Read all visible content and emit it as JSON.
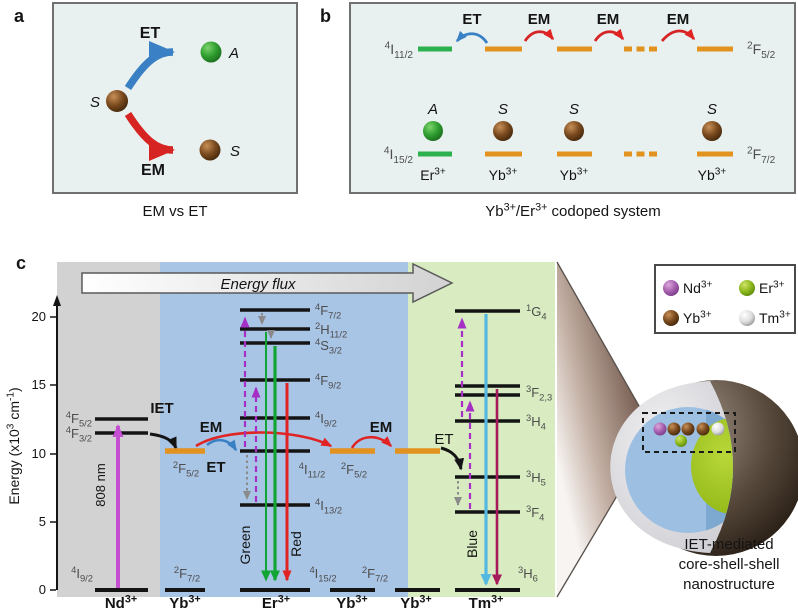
{
  "panel_a": {
    "label": "a",
    "caption": "EM vs ET",
    "et_label": "ET",
    "em_label": "EM",
    "sensitizer_label": "S",
    "acceptor_label": "A",
    "sensitizer2_label": "S"
  },
  "panel_b": {
    "label": "b",
    "caption": [
      {
        "t": "Yb"
      },
      {
        "t": "3+",
        "sup": true
      },
      {
        "t": "/Er"
      },
      {
        "t": "3+",
        "sup": true
      },
      {
        "t": " codoped system"
      }
    ],
    "et_label": "ET",
    "em_label_1": "EM",
    "em_label_2": "EM",
    "em_label_3": "EM",
    "term_top_left": [
      {
        "t": "4",
        "sup": true
      },
      {
        "t": "I"
      },
      {
        "t": "11/2",
        "sub": true
      }
    ],
    "term_top_right": [
      {
        "t": "2",
        "sup": true
      },
      {
        "t": "F"
      },
      {
        "t": "5/2",
        "sub": true
      }
    ],
    "term_bottom_left": [
      {
        "t": "4",
        "sup": true
      },
      {
        "t": "I"
      },
      {
        "t": "15/2",
        "sub": true
      }
    ],
    "term_bottom_right": [
      {
        "t": "2",
        "sup": true
      },
      {
        "t": "F"
      },
      {
        "t": "7/2",
        "sub": true
      }
    ],
    "site_labels": [
      "A",
      "S",
      "S",
      "S"
    ],
    "ion_labels": [
      [
        {
          "t": "Er"
        },
        {
          "t": "3+",
          "sup": true
        }
      ],
      [
        {
          "t": "Yb"
        },
        {
          "t": "3+",
          "sup": true
        }
      ],
      [
        {
          "t": "Yb"
        },
        {
          "t": "3+",
          "sup": true
        }
      ],
      [
        {
          "t": "Yb"
        },
        {
          "t": "3+",
          "sup": true
        }
      ]
    ]
  },
  "panel_c": {
    "label": "c",
    "flux_label": "Energy flux",
    "axis_label": [
      {
        "t": "Energy (x10"
      },
      {
        "t": "3",
        "sup": true
      },
      {
        "t": " cm"
      },
      {
        "t": "-1",
        "sup": true
      },
      {
        "t": ")"
      }
    ],
    "ticks": [
      "0",
      "5",
      "10",
      "15",
      "20"
    ],
    "pump_label": "808 nm",
    "iet_label": "IET",
    "em_label_1": "EM",
    "em_label_2": "EM",
    "et_label_blue": "ET",
    "et_label_black": "ET",
    "green_label": "Green",
    "red_label": "Red",
    "blue_label": "Blue",
    "terms": {
      "nd_f52": [
        {
          "t": "4",
          "sup": true
        },
        {
          "t": "F"
        },
        {
          "t": "5/2",
          "sub": true
        }
      ],
      "nd_f32": [
        {
          "t": "4",
          "sup": true
        },
        {
          "t": "F"
        },
        {
          "t": "3/2",
          "sub": true
        }
      ],
      "nd_i92": [
        {
          "t": "4",
          "sup": true
        },
        {
          "t": "I"
        },
        {
          "t": "9/2",
          "sub": true
        }
      ],
      "yb_f52": [
        {
          "t": "2",
          "sup": true
        },
        {
          "t": "F"
        },
        {
          "t": "5/2",
          "sub": true
        }
      ],
      "yb_f72": [
        {
          "t": "2",
          "sup": true
        },
        {
          "t": "F"
        },
        {
          "t": "7/2",
          "sub": true
        }
      ],
      "er_f72": [
        {
          "t": "4",
          "sup": true
        },
        {
          "t": "F"
        },
        {
          "t": "7/2",
          "sub": true
        }
      ],
      "er_h112": [
        {
          "t": "2",
          "sup": true
        },
        {
          "t": "H"
        },
        {
          "t": "11/2",
          "sub": true
        }
      ],
      "er_s32": [
        {
          "t": "4",
          "sup": true
        },
        {
          "t": "S"
        },
        {
          "t": "3/2",
          "sub": true
        }
      ],
      "er_f92": [
        {
          "t": "4",
          "sup": true
        },
        {
          "t": "F"
        },
        {
          "t": "9/2",
          "sub": true
        }
      ],
      "er_i92": [
        {
          "t": "4",
          "sup": true
        },
        {
          "t": "I"
        },
        {
          "t": "9/2",
          "sub": true
        }
      ],
      "er_i112": [
        {
          "t": "4",
          "sup": true
        },
        {
          "t": "I"
        },
        {
          "t": "11/2",
          "sub": true
        }
      ],
      "er_i132": [
        {
          "t": "4",
          "sup": true
        },
        {
          "t": "I"
        },
        {
          "t": "13/2",
          "sub": true
        }
      ],
      "er_i152": [
        {
          "t": "4",
          "sup": true
        },
        {
          "t": "I"
        },
        {
          "t": "15/2",
          "sub": true
        }
      ],
      "yb2_f52": [
        {
          "t": "2",
          "sup": true
        },
        {
          "t": "F"
        },
        {
          "t": "5/2",
          "sub": true
        }
      ],
      "yb2_f72": [
        {
          "t": "2",
          "sup": true
        },
        {
          "t": "F"
        },
        {
          "t": "7/2",
          "sub": true
        }
      ],
      "tm_1g4": [
        {
          "t": "1",
          "sup": true
        },
        {
          "t": "G"
        },
        {
          "t": "4",
          "sub": true
        }
      ],
      "tm_3f23": [
        {
          "t": "3",
          "sup": true
        },
        {
          "t": "F"
        },
        {
          "t": "2,3",
          "sub": true
        }
      ],
      "tm_3h4": [
        {
          "t": "3",
          "sup": true
        },
        {
          "t": "H"
        },
        {
          "t": "4",
          "sub": true
        }
      ],
      "tm_3h5": [
        {
          "t": "3",
          "sup": true
        },
        {
          "t": "H"
        },
        {
          "t": "5",
          "sub": true
        }
      ],
      "tm_3f4": [
        {
          "t": "3",
          "sup": true
        },
        {
          "t": "F"
        },
        {
          "t": "4",
          "sub": true
        }
      ],
      "tm_3h6": [
        {
          "t": "3",
          "sup": true
        },
        {
          "t": "H"
        },
        {
          "t": "6",
          "sub": true
        }
      ]
    },
    "level_energies_e3cm": {
      "nd": {
        "4F5/2": 12.5,
        "4F3/2": 11.5,
        "4I9/2": 0
      },
      "yb": {
        "2F5/2": 10.2,
        "2F7/2": 0
      },
      "er": {
        "4F7/2": 20.5,
        "2H11/2": 19.1,
        "4S3/2": 18.1,
        "4F9/2": 15.4,
        "4I9/2": 12.6,
        "4I11/2": 10.2,
        "4I13/2": 6.2,
        "4I15/2": 0
      },
      "tm": {
        "1G4": 20.4,
        "3F2,3": 14.7,
        "3H4": 12.4,
        "3H5": 8.3,
        "3F4": 5.7,
        "3H6": 0
      }
    },
    "ions": [
      {
        "label": [
          {
            "t": "Nd"
          },
          {
            "t": "3+",
            "sup": true
          }
        ],
        "color": "#141414"
      },
      {
        "label": [
          {
            "t": "Yb"
          },
          {
            "t": "3+",
            "sup": true
          }
        ],
        "color": "#c23b3b"
      },
      {
        "label": [
          {
            "t": "Er"
          },
          {
            "t": "3+",
            "sup": true
          }
        ],
        "color": "#2aa05f"
      },
      {
        "label": [
          {
            "t": "Yb"
          },
          {
            "t": "3+",
            "sup": true
          }
        ],
        "color": "#c23b3b"
      },
      {
        "label": [
          {
            "t": "Yb"
          },
          {
            "t": "3+",
            "sup": true
          }
        ],
        "color": "#c23b3b"
      },
      {
        "label": [
          {
            "t": "Tm"
          },
          {
            "t": "3+",
            "sup": true
          }
        ],
        "color": "#41a9d6"
      }
    ],
    "legend": {
      "items": [
        {
          "label": [
            {
              "t": "Nd"
            },
            {
              "t": "3+",
              "sup": true
            }
          ],
          "color": "#b46cc0"
        },
        {
          "label": [
            {
              "t": "Er"
            },
            {
              "t": "3+",
              "sup": true
            }
          ],
          "color": "#8fba1e"
        },
        {
          "label": [
            {
              "t": "Yb"
            },
            {
              "t": "3+",
              "sup": true
            }
          ],
          "color": "#6e421a"
        },
        {
          "label": [
            {
              "t": "Tm"
            },
            {
              "t": "3+",
              "sup": true
            }
          ],
          "color": "#dcdcdc"
        }
      ]
    },
    "nano_caption": [
      "IET-mediated",
      "core-shell-shell",
      "nanostructure"
    ],
    "nano_caption_color": "#b33333",
    "zone_colors": {
      "nd": "#d2d2d2",
      "yb_er": "#a9c5e6",
      "tm": "#d9ecc1"
    }
  }
}
